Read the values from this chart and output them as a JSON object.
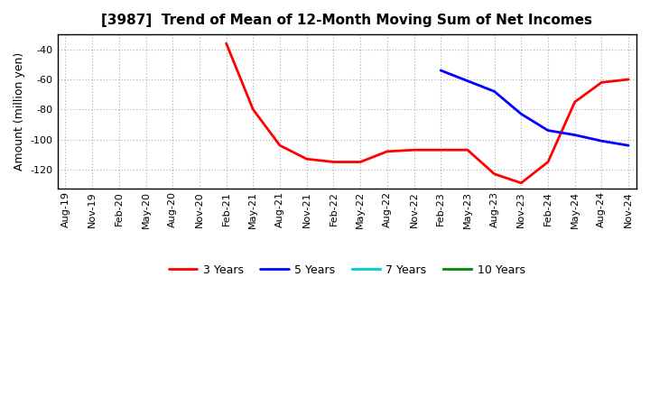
{
  "title": "[3987]  Trend of Mean of 12-Month Moving Sum of Net Incomes",
  "ylabel": "Amount (million yen)",
  "background_color": "#ffffff",
  "plot_bg_color": "#ffffff",
  "grid_color": "#888888",
  "ylim": [
    -133,
    -30
  ],
  "yticks": [
    -120,
    -100,
    -80,
    -60,
    -40
  ],
  "x_labels": [
    "Aug-19",
    "Nov-19",
    "Feb-20",
    "May-20",
    "Aug-20",
    "Nov-20",
    "Feb-21",
    "May-21",
    "Aug-21",
    "Nov-21",
    "Feb-22",
    "May-22",
    "Aug-22",
    "Nov-22",
    "Feb-23",
    "May-23",
    "Aug-23",
    "Nov-23",
    "Feb-24",
    "May-24",
    "Aug-24",
    "Nov-24"
  ],
  "series_3y": {
    "label": "3 Years",
    "color": "#ff0000",
    "x_idx": [
      6,
      7,
      8,
      9,
      10,
      11,
      12,
      13,
      14,
      15,
      16,
      17,
      18,
      19,
      20,
      21
    ],
    "y": [
      -36,
      -80,
      -104,
      -113,
      -115,
      -115,
      -108,
      -107,
      -107,
      -107,
      -123,
      -129,
      -115,
      -75,
      -62,
      -60
    ]
  },
  "series_5y": {
    "label": "5 Years",
    "color": "#0000ff",
    "x_idx": [
      14,
      15,
      16,
      17,
      18,
      19,
      20,
      21
    ],
    "y": [
      -54,
      -61,
      -68,
      -83,
      -94,
      -97,
      -101,
      -104
    ]
  },
  "series_7y": {
    "label": "7 Years",
    "color": "#00cccc",
    "x_idx": [],
    "y": []
  },
  "series_10y": {
    "label": "10 Years",
    "color": "#008800",
    "x_idx": [],
    "y": []
  }
}
